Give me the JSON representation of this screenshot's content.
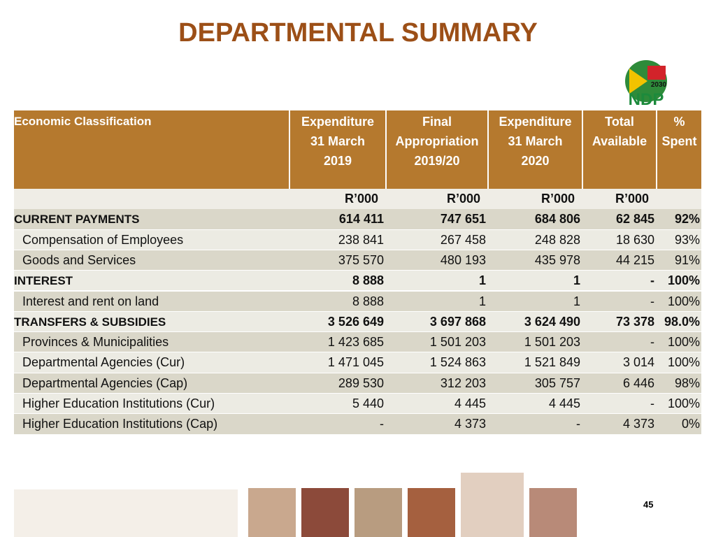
{
  "title": "DEPARTMENTAL SUMMARY",
  "logo": {
    "year": "2030",
    "name": "NDP"
  },
  "table": {
    "header": [
      [
        "Economic Classification"
      ],
      [
        "Expenditure",
        "31 March",
        "2019"
      ],
      [
        "Final",
        "Appropriation",
        "2019/20"
      ],
      [
        "Expenditure",
        "31 March",
        "2020"
      ],
      [
        "Total",
        "Available"
      ],
      [
        "%",
        "Spent"
      ]
    ],
    "units": [
      "R’000",
      "R’000",
      "R’000",
      "R’000"
    ],
    "rows": [
      {
        "bold": true,
        "cells": [
          "CURRENT PAYMENTS",
          "614 411",
          "747 651",
          "684 806",
          "62 845",
          "92%"
        ]
      },
      {
        "bold": false,
        "cells": [
          "Compensation of Employees",
          "238 841",
          "267 458",
          "248 828",
          "18 630",
          "93%"
        ]
      },
      {
        "bold": false,
        "cells": [
          "Goods and Services",
          "375 570",
          "480 193",
          "435 978",
          "44 215",
          "91%"
        ]
      },
      {
        "bold": true,
        "cells": [
          "INTEREST",
          "8 888",
          "1",
          "1",
          "-",
          "100%"
        ]
      },
      {
        "bold": false,
        "cells": [
          "Interest and rent on land",
          "8 888",
          "1",
          "1",
          "-",
          "100%"
        ]
      },
      {
        "bold": true,
        "cells": [
          "TRANSFERS & SUBSIDIES",
          "3 526 649",
          "3 697 868",
          "3 624 490",
          "73 378",
          "98.0%"
        ]
      },
      {
        "bold": false,
        "cells": [
          "Provinces & Municipalities",
          "1 423 685",
          "1 501 203",
          "1 501 203",
          "-",
          "100%"
        ]
      },
      {
        "bold": false,
        "cells": [
          "Departmental Agencies (Cur)",
          "1 471 045",
          "1 524 863",
          "1 521 849",
          "3 014",
          "100%"
        ]
      },
      {
        "bold": false,
        "cells": [
          "Departmental Agencies (Cap)",
          "289 530",
          "312 203",
          "305 757",
          "6 446",
          "98%"
        ]
      },
      {
        "bold": false,
        "cells": [
          "Higher Education Institutions (Cur)",
          "5 440",
          "4 445",
          "4 445",
          "-",
          "100%"
        ]
      },
      {
        "bold": false,
        "cells": [
          "Higher Education Institutions (Cap)",
          "-",
          "4 373",
          "-",
          "4 373",
          "0%"
        ]
      }
    ]
  },
  "page_number": "45"
}
